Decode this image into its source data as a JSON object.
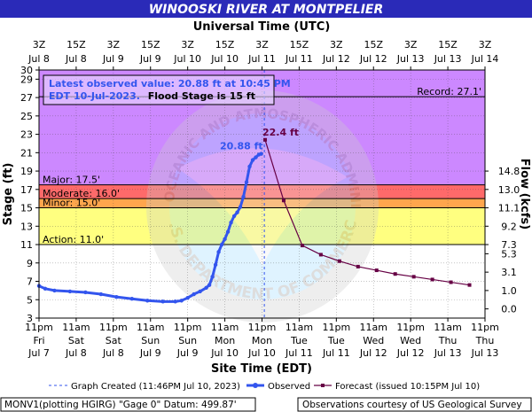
{
  "chart_data": {
    "type": "line",
    "title": "WINOOSKI RIVER AT MONTPELIER",
    "top_axis_title": "Universal Time (UTC)",
    "xlabel": "Site Time (EDT)",
    "ylabel": "Stage (ft)",
    "y2label": "Flow (kcfs)",
    "ylim": [
      3,
      30
    ],
    "yticks": [
      3,
      5,
      7,
      9,
      11,
      13,
      15,
      17,
      19,
      21,
      23,
      25,
      27,
      29,
      30
    ],
    "flow_ticks": [
      {
        "stage": 4,
        "label": "0.0"
      },
      {
        "stage": 6,
        "label": "1.0"
      },
      {
        "stage": 8,
        "label": "3.1"
      },
      {
        "stage": 10,
        "label": "5.3"
      },
      {
        "stage": 11,
        "label": "7.3"
      },
      {
        "stage": 13,
        "label": "9.2"
      },
      {
        "stage": 15,
        "label": "11.1"
      },
      {
        "stage": 17,
        "label": "13.0"
      },
      {
        "stage": 19,
        "label": "14.8"
      }
    ],
    "top_ticks": [
      {
        "h": 0,
        "l1": "3Z",
        "l2": "Jul 8"
      },
      {
        "h": 12,
        "l1": "15Z",
        "l2": "Jul 8"
      },
      {
        "h": 24,
        "l1": "3Z",
        "l2": "Jul 9"
      },
      {
        "h": 36,
        "l1": "15Z",
        "l2": "Jul 9"
      },
      {
        "h": 48,
        "l1": "3Z",
        "l2": "Jul 10"
      },
      {
        "h": 60,
        "l1": "15Z",
        "l2": "Jul 10"
      },
      {
        "h": 72,
        "l1": "3Z",
        "l2": "Jul 11"
      },
      {
        "h": 84,
        "l1": "15Z",
        "l2": "Jul 11"
      },
      {
        "h": 96,
        "l1": "3Z",
        "l2": "Jul 12"
      },
      {
        "h": 108,
        "l1": "15Z",
        "l2": "Jul 12"
      },
      {
        "h": 120,
        "l1": "3Z",
        "l2": "Jul 13"
      },
      {
        "h": 132,
        "l1": "15Z",
        "l2": "Jul 13"
      },
      {
        "h": 144,
        "l1": "3Z",
        "l2": "Jul 14"
      }
    ],
    "bottom_ticks": [
      {
        "h": 0,
        "l1": "11pm",
        "l2": "Fri",
        "l3": "Jul 7"
      },
      {
        "h": 12,
        "l1": "11am",
        "l2": "Sat",
        "l3": "Jul 8"
      },
      {
        "h": 24,
        "l1": "11pm",
        "l2": "Sat",
        "l3": "Jul 8"
      },
      {
        "h": 36,
        "l1": "11am",
        "l2": "Sun",
        "l3": "Jul 9"
      },
      {
        "h": 48,
        "l1": "11pm",
        "l2": "Sun",
        "l3": "Jul 9"
      },
      {
        "h": 60,
        "l1": "11am",
        "l2": "Mon",
        "l3": "Jul 10"
      },
      {
        "h": 72,
        "l1": "11pm",
        "l2": "Mon",
        "l3": "Jul 10"
      },
      {
        "h": 84,
        "l1": "11am",
        "l2": "Tue",
        "l3": "Jul 11"
      },
      {
        "h": 96,
        "l1": "11pm",
        "l2": "Tue",
        "l3": "Jul 11"
      },
      {
        "h": 108,
        "l1": "11am",
        "l2": "Wed",
        "l3": "Jul 12"
      },
      {
        "h": 120,
        "l1": "11pm",
        "l2": "Wed",
        "l3": "Jul 12"
      },
      {
        "h": 132,
        "l1": "11am",
        "l2": "Thu",
        "l3": "Jul 13"
      },
      {
        "h": 144,
        "l1": "11pm",
        "l2": "Thu",
        "l3": "Jul 13"
      }
    ],
    "xlim_hours": [
      0,
      144
    ],
    "flood_categories": [
      {
        "name": "Record",
        "label": "Record: 27.1'",
        "stage": 27.1
      },
      {
        "name": "Major",
        "label": "Major: 17.5'",
        "from": 17.5,
        "to": 30,
        "color": "#cc88ff"
      },
      {
        "name": "Moderate",
        "label": "Moderate: 16.0'",
        "from": 16.0,
        "to": 17.5,
        "color": "#ff6a6a"
      },
      {
        "name": "Minor",
        "label": "Minor: 15.0'",
        "from": 15.0,
        "to": 16.0,
        "color": "#ffa64d"
      },
      {
        "name": "Action",
        "label": "Action: 11.0'",
        "from": 11.0,
        "to": 15.0,
        "color": "#ffff80"
      }
    ],
    "info_box": {
      "line1": "Latest observed value: 20.88 ft at 10:45 PM",
      "line2a": "EDT 10-Jul-2023.",
      "line2b": "Flood Stage is 15 ft"
    },
    "graph_created_hour": 72.75,
    "observed": {
      "name": "Observed",
      "color": "#3355ee",
      "peak_label": "20.88 ft",
      "x": [
        0,
        2,
        5,
        10,
        15,
        20,
        25,
        30,
        35,
        40,
        44,
        46,
        48,
        50,
        52,
        54,
        55,
        56,
        57,
        58,
        59,
        60,
        61,
        62,
        63,
        64,
        65,
        66,
        67,
        68,
        69,
        70,
        71,
        71.75
      ],
      "y": [
        6.5,
        6.2,
        6.0,
        5.9,
        5.8,
        5.6,
        5.3,
        5.1,
        4.9,
        4.8,
        4.8,
        4.9,
        5.2,
        5.6,
        5.9,
        6.3,
        6.6,
        7.5,
        8.8,
        10.2,
        11.0,
        11.6,
        12.4,
        13.4,
        14.1,
        14.5,
        15.1,
        16.2,
        17.8,
        19.5,
        20.2,
        20.5,
        20.8,
        20.88
      ]
    },
    "forecast": {
      "name": "Forecast (issued 10:15PM Jul 10)",
      "color": "#660044",
      "peak_label": "22.4 ft",
      "x": [
        73,
        79,
        85,
        91,
        97,
        103,
        109,
        115,
        121,
        127,
        133,
        139
      ],
      "y": [
        22.4,
        15.8,
        10.9,
        9.9,
        9.2,
        8.6,
        8.2,
        7.8,
        7.5,
        7.2,
        6.9,
        6.6
      ]
    },
    "legend": {
      "created": "Graph Created (11:46PM Jul 10, 2023)",
      "observed": "Observed",
      "forecast": "Forecast (issued 10:15PM Jul 10)"
    }
  },
  "footer": {
    "left": "MONV1(plotting HGIRG) \"Gage 0\" Datum: 499.87'",
    "right": "Observations courtesy of US Geological Survey"
  },
  "watermark": {
    "top_text": "NATIONAL OCEANIC AND ATMOSPHERIC ADMINISTRATION",
    "bottom_text": "U.S. DEPARTMENT OF COMMERCE"
  },
  "colors": {
    "title_bg": "#2a2ab8",
    "frame": "#000000",
    "normal_band": "#ffffff"
  }
}
